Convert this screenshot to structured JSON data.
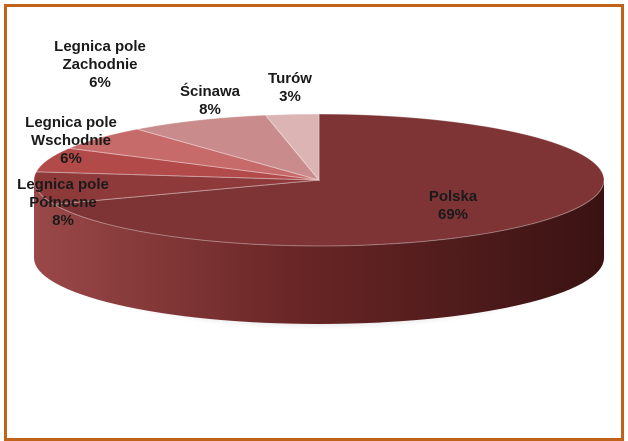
{
  "chart_data": {
    "type": "pie",
    "style": "3d",
    "slices": [
      {
        "label_lines": [
          "Polska"
        ],
        "value": 69,
        "value_label": "69%",
        "color": "#7e3334"
      },
      {
        "label_lines": [
          "Legnica pole",
          "Północne"
        ],
        "value": 8,
        "value_label": "8%",
        "color": "#8f3a3a"
      },
      {
        "label_lines": [
          "Legnica pole",
          "Wschodnie"
        ],
        "value": 6,
        "value_label": "6%",
        "color": "#b24a4a"
      },
      {
        "label_lines": [
          "Legnica pole",
          "Zachodnie"
        ],
        "value": 6,
        "value_label": "6%",
        "color": "#c66a6a"
      },
      {
        "label_lines": [
          "Ścinawa"
        ],
        "value": 8,
        "value_label": "8%",
        "color": "#c98b8b"
      },
      {
        "label_lines": [
          "Turów"
        ],
        "value": 3,
        "value_label": "3%",
        "color": "#dcb4b4"
      }
    ]
  }
}
